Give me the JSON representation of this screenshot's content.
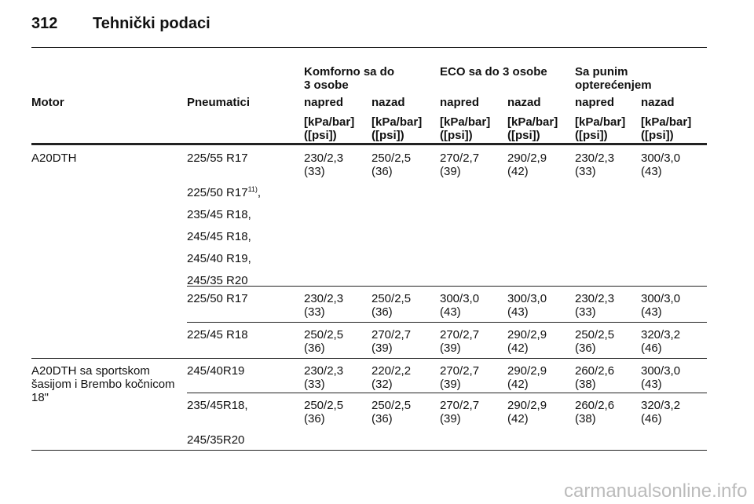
{
  "header": {
    "page_number": "312",
    "title": "Tehnički podaci"
  },
  "table": {
    "group_headers": [
      "Komforno sa do\n3 osobe",
      "ECO sa do 3 osobe",
      "Sa punim\nopterećenjem"
    ],
    "column_headers": [
      "Motor",
      "Pneumatici",
      "napred",
      "nazad",
      "napred",
      "nazad",
      "napred",
      "nazad"
    ],
    "units": [
      "[kPa/bar]\n([psi])",
      "[kPa/bar]\n([psi])",
      "[kPa/bar]\n([psi])",
      "[kPa/bar]\n([psi])",
      "[kPa/bar]\n([psi])",
      "[kPa/bar]\n([psi])"
    ],
    "groups": [
      {
        "motor": "A20DTH",
        "rows": [
          {
            "tires": [
              {
                "text": "225/55 R17"
              },
              {
                "text": "225/50 R17",
                "note": "11)",
                "suffix": ","
              },
              {
                "text": "235/45 R18,"
              },
              {
                "text": "245/45 R18,"
              },
              {
                "text": "245/40 R19,"
              },
              {
                "text": "245/35 R20"
              }
            ],
            "values": [
              "230/2,3\n(33)",
              "250/2,5\n(36)",
              "270/2,7\n(39)",
              "290/2,9\n(42)",
              "230/2,3\n(33)",
              "300/3,0\n(43)"
            ]
          },
          {
            "tires": [
              {
                "text": "225/50 R17"
              }
            ],
            "values": [
              "230/2,3\n(33)",
              "250/2,5\n(36)",
              "300/3,0\n(43)",
              "300/3,0\n(43)",
              "230/2,3\n(33)",
              "300/3,0\n(43)"
            ]
          },
          {
            "tires": [
              {
                "text": "225/45 R18"
              }
            ],
            "values": [
              "250/2,5\n(36)",
              "270/2,7\n(39)",
              "270/2,7\n(39)",
              "290/2,9\n(42)",
              "250/2,5\n(36)",
              "320/3,2\n(46)"
            ]
          }
        ]
      },
      {
        "motor": "A20DTH sa sportskom\nšasijom i Brembo kočnicom\n18\"",
        "rows": [
          {
            "tires": [
              {
                "text": "245/40R19"
              }
            ],
            "values": [
              "230/2,3\n(33)",
              "220/2,2\n(32)",
              "270/2,7\n(39)",
              "290/2,9\n(42)",
              "260/2,6\n(38)",
              "300/3,0\n(43)"
            ]
          },
          {
            "tires": [
              {
                "text": "235/45R18,"
              },
              {
                "text": "245/35R20"
              }
            ],
            "values": [
              "250/2,5\n(36)",
              "250/2,5\n(36)",
              "270/2,7\n(39)",
              "290/2,9\n(42)",
              "260/2,6\n(38)",
              "320/3,2\n(46)"
            ]
          }
        ]
      }
    ]
  },
  "watermark": "carmanualsonline.info"
}
